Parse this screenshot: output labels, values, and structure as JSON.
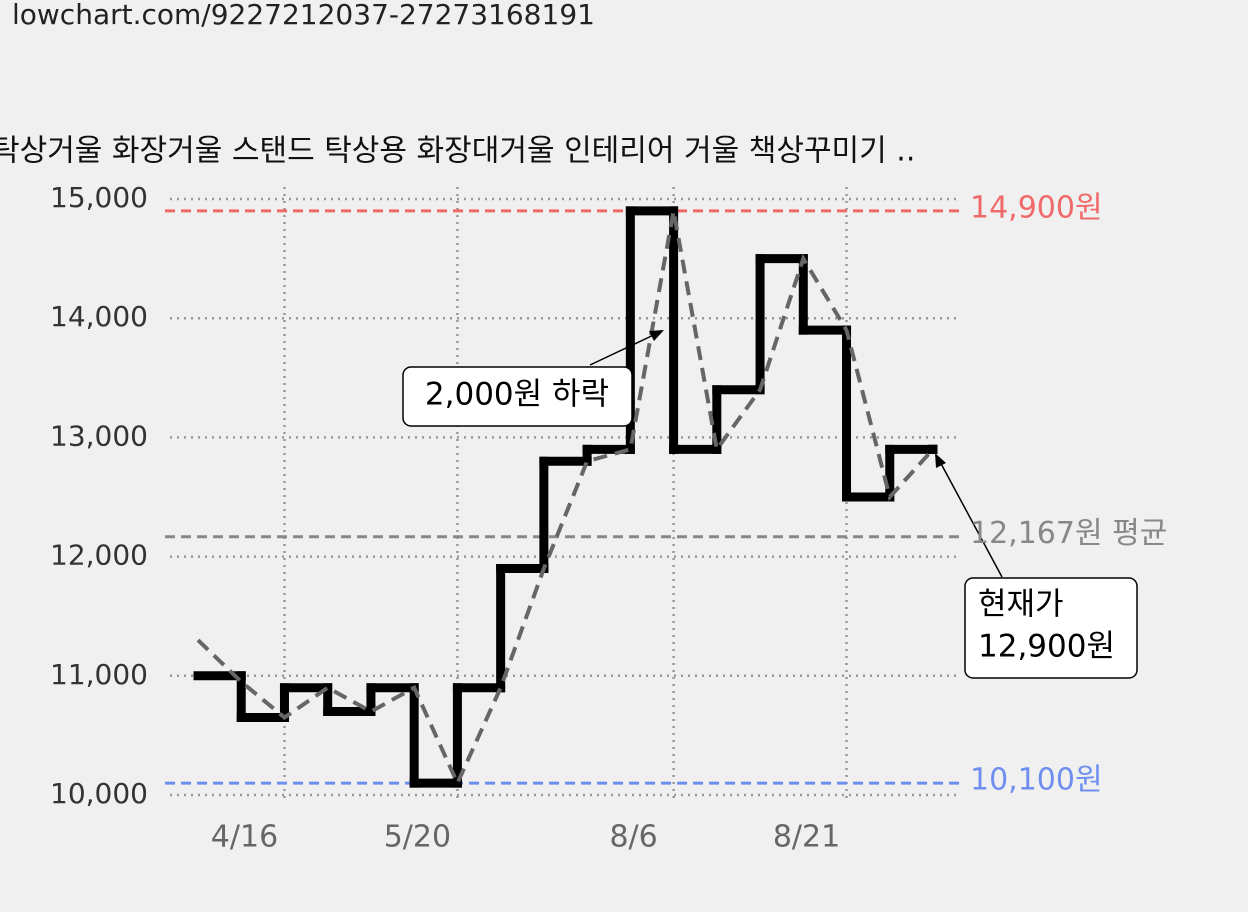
{
  "header": {
    "url": "lowchart.com/9227212037-27273168191"
  },
  "chart_data": {
    "type": "step",
    "title": "탁상거울 화장거울 스탠드 탁상용 화장대거울 인테리어 거울 책상꾸미기 ..",
    "categories": [
      null,
      null,
      "4/16",
      null,
      null,
      null,
      "5/20",
      null,
      null,
      null,
      null,
      "8/6",
      null,
      null,
      null,
      "8/21",
      null,
      null
    ],
    "series": [
      {
        "color": "#000000",
        "style": "solid",
        "values": [
          11000,
          10650,
          10900,
          10700,
          10900,
          10100,
          10900,
          11900,
          12800,
          12900,
          14900,
          12900,
          13400,
          14500,
          13900,
          12500,
          12900,
          12900
        ]
      },
      {
        "color": "#666666",
        "style": "dashed",
        "values": [
          11300,
          10950,
          10650,
          10900,
          10700,
          10900,
          10100,
          10900,
          11900,
          12800,
          12900,
          14900,
          12900,
          13400,
          14500,
          13900,
          12500,
          12900
        ]
      }
    ],
    "ylim": [
      10000,
      15000
    ],
    "yticks": [
      {
        "value": 10000,
        "label": "10,000"
      },
      {
        "value": 11000,
        "label": "11,000"
      },
      {
        "value": 12000,
        "label": "12,000"
      },
      {
        "value": 13000,
        "label": "13,000"
      },
      {
        "value": 14000,
        "label": "14,000"
      },
      {
        "value": 15000,
        "label": "15,000"
      }
    ],
    "grid": true,
    "reference_lines": [
      {
        "value": 14900,
        "label": "14,900원",
        "color": "#f06a6a"
      },
      {
        "value": 12167,
        "label": "12,167원 평균",
        "color": "#888888"
      },
      {
        "value": 10100,
        "label": "10,100원",
        "color": "#6f8ff0"
      }
    ],
    "annotations": [
      {
        "lines": [
          "2,000원 하락"
        ]
      },
      {
        "lines": [
          "현재가",
          "12,900원"
        ]
      }
    ]
  }
}
